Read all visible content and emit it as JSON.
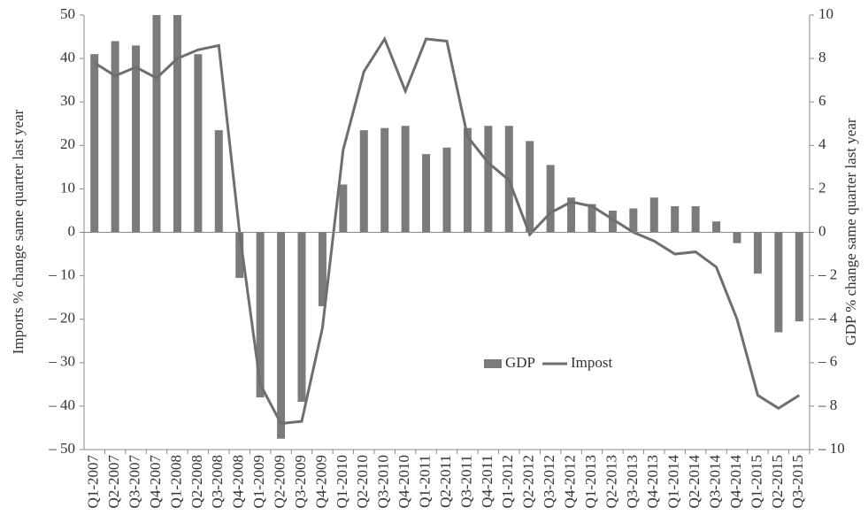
{
  "chart_data": {
    "type": "bar_line",
    "y_axis_label": "Imports % change same quarter last year",
    "y2_axis_label": "GDP % change same quarter last year",
    "categories": [
      "Q1-2007",
      "Q2-2007",
      "Q3-2007",
      "Q4-2007",
      "Q1-2008",
      "Q2-2008",
      "Q3-2008",
      "Q4-2008",
      "Q1-2009",
      "Q2-2009",
      "Q3-2009",
      "Q4-2009",
      "Q1-2010",
      "Q2-2010",
      "Q3-2010",
      "Q4-2010",
      "Q1-2011",
      "Q2-2011",
      "Q3-2011",
      "Q4-2011",
      "Q1-2012",
      "Q2-2012",
      "Q3-2012",
      "Q4-2012",
      "Q1-2013",
      "Q2-2013",
      "Q3-2013",
      "Q4-2013",
      "Q1-2014",
      "Q2-2014",
      "Q3-2014",
      "Q4-2014",
      "Q1-2015",
      "Q2-2015",
      "Q3-2015"
    ],
    "series": [
      {
        "name": "GDP",
        "type": "bar",
        "axis": "y2",
        "color": "#7b7b7b",
        "values": [
          8.2,
          8.8,
          8.6,
          10,
          10,
          8.2,
          4.7,
          -2.1,
          -7.6,
          -9.5,
          -7.8,
          -3.4,
          2.2,
          4.7,
          4.8,
          4.9,
          3.6,
          3.9,
          4.8,
          4.9,
          4.9,
          4.2,
          3.1,
          1.6,
          1.3,
          1.0,
          1.1,
          1.6,
          1.2,
          1.2,
          0.5,
          -0.5,
          -1.9,
          -4.6,
          -4.1
        ]
      },
      {
        "name": "Impost",
        "type": "line",
        "axis": "y",
        "color": "#6e6e6e",
        "values": [
          39,
          36,
          38,
          35.5,
          40,
          42,
          43,
          0,
          -35,
          -44,
          -43.5,
          -22,
          19,
          37,
          44.5,
          32.5,
          44.5,
          44,
          22,
          16,
          12,
          -0.5,
          4.5,
          7,
          6,
          3,
          0,
          -2,
          -5,
          -4.5,
          -8,
          -20,
          -37.5,
          -40.5,
          -37.5
        ]
      }
    ],
    "ylim": [
      -50,
      50
    ],
    "yticks": [
      {
        "value": -50,
        "label": "– 50"
      },
      {
        "value": -40,
        "label": "– 40"
      },
      {
        "value": -30,
        "label": "– 30"
      },
      {
        "value": -20,
        "label": "– 20"
      },
      {
        "value": -10,
        "label": "– 10"
      },
      0,
      10,
      20,
      30,
      40,
      50
    ],
    "y2lim": [
      -10,
      10
    ],
    "y2ticks": [
      {
        "value": -10,
        "label": "– 10"
      },
      {
        "value": -8,
        "label": "– 8"
      },
      {
        "value": -6,
        "label": "– 6"
      },
      {
        "value": -4,
        "label": "– 4"
      },
      {
        "value": -2,
        "label": "– 2"
      },
      0,
      2,
      4,
      6,
      8,
      10
    ]
  }
}
